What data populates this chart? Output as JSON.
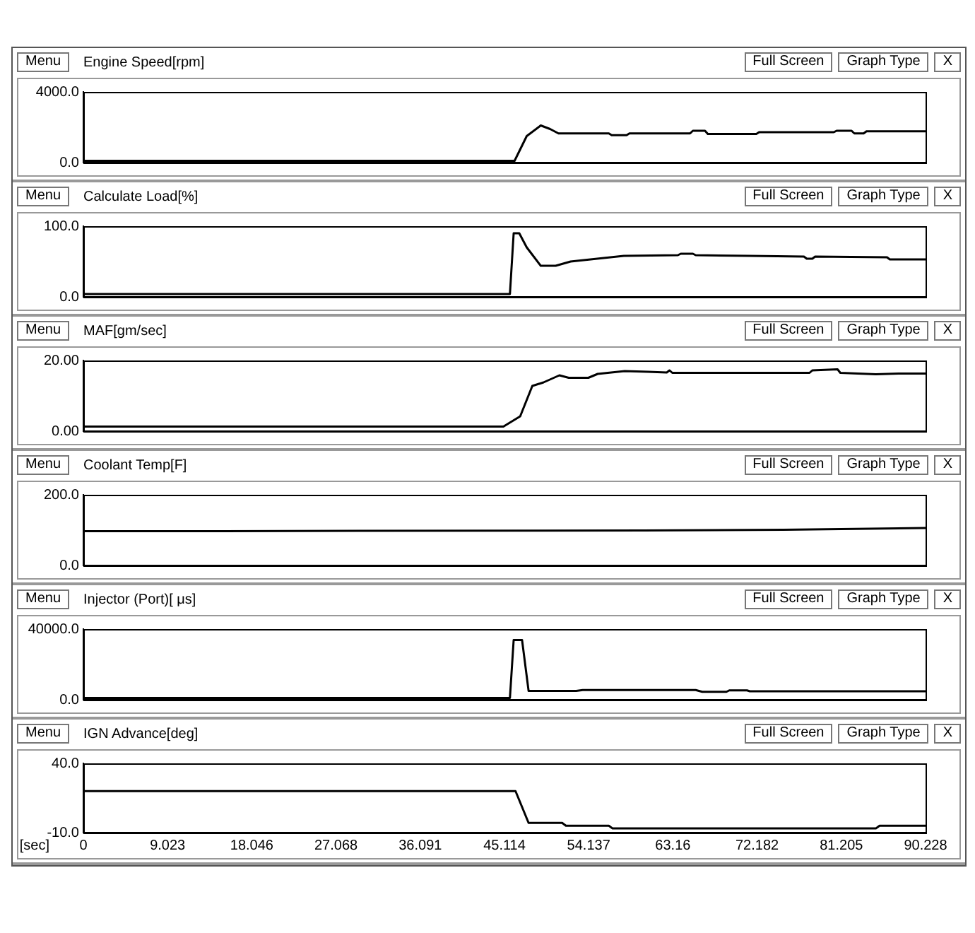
{
  "chart_data": [
    {
      "type": "line",
      "title": "Engine Speed[rpm]",
      "annotations": [
        "Menu",
        "Full Screen",
        "Graph Type",
        "X"
      ],
      "xlim": [
        0,
        90.228
      ],
      "xticks": [
        0,
        9.023,
        18.046,
        27.068,
        36.091,
        45.114,
        54.137,
        63.16,
        72.182,
        81.205,
        90.228
      ],
      "ylim": [
        0,
        4000
      ],
      "yticks": [
        {
          "value": 0,
          "label": "0.0"
        },
        {
          "value": 4000,
          "label": "4000.0"
        }
      ],
      "tick_labels": "y",
      "grid": false,
      "legend": false,
      "series": [
        {
          "color": "#000000",
          "x": [
            0,
            46.2,
            47.5,
            49.0,
            50.0,
            50.9,
            56.3,
            56.6,
            58.2,
            58.5,
            65.0,
            65.3,
            66.6,
            66.9,
            72.1,
            72.4,
            80.4,
            80.7,
            82.3,
            82.6,
            83.6,
            83.9,
            90.228
          ],
          "values": [
            100,
            100,
            1500,
            2100,
            1900,
            1650,
            1650,
            1550,
            1550,
            1650,
            1650,
            1800,
            1800,
            1620,
            1620,
            1720,
            1720,
            1800,
            1800,
            1650,
            1650,
            1770,
            1770
          ]
        }
      ]
    },
    {
      "type": "line",
      "title": "Calculate Load[%]",
      "annotations": [
        "Menu",
        "Full Screen",
        "Graph Type",
        "X"
      ],
      "xlim": [
        0,
        90.228
      ],
      "xticks": [
        0,
        9.023,
        18.046,
        27.068,
        36.091,
        45.114,
        54.137,
        63.16,
        72.182,
        81.205,
        90.228
      ],
      "ylim": [
        0,
        100
      ],
      "yticks": [
        {
          "value": 0,
          "label": "0.0"
        },
        {
          "value": 100,
          "label": "100.0"
        }
      ],
      "tick_labels": "y",
      "grid": false,
      "legend": false,
      "series": [
        {
          "color": "#000000",
          "x": [
            0,
            45.7,
            46.1,
            46.7,
            47.5,
            49.0,
            50.6,
            52.2,
            57.9,
            63.7,
            64.0,
            65.3,
            65.6,
            71.4,
            77.2,
            77.5,
            78.1,
            78.4,
            86.1,
            86.4,
            90.228
          ],
          "values": [
            4,
            4,
            90,
            90,
            70,
            44,
            44,
            50,
            58,
            59,
            61,
            61,
            59,
            58,
            57,
            54,
            54,
            57,
            56,
            53,
            53
          ]
        }
      ]
    },
    {
      "type": "line",
      "title": "MAF[gm/sec]",
      "annotations": [
        "Menu",
        "Full Screen",
        "Graph Type",
        "X"
      ],
      "xlim": [
        0,
        90.228
      ],
      "xticks": [
        0,
        9.023,
        18.046,
        27.068,
        36.091,
        45.114,
        54.137,
        63.16,
        72.182,
        81.205,
        90.228
      ],
      "ylim": [
        0,
        20
      ],
      "yticks": [
        {
          "value": 0,
          "label": "0.00"
        },
        {
          "value": 20,
          "label": "20.00"
        }
      ],
      "tick_labels": "y",
      "grid": false,
      "legend": false,
      "series": [
        {
          "color": "#000000",
          "x": [
            0,
            45.0,
            46.8,
            48.1,
            49.3,
            51.0,
            52.0,
            54.1,
            55.1,
            58.0,
            60.5,
            62.5,
            62.8,
            63.1,
            77.8,
            78.1,
            80.8,
            81.1,
            84.9,
            87.4,
            90.228
          ],
          "values": [
            1.3,
            1.3,
            4.2,
            12.8,
            13.8,
            15.8,
            15.1,
            15.1,
            16.2,
            17.0,
            16.8,
            16.6,
            17.2,
            16.5,
            16.5,
            17.2,
            17.5,
            16.5,
            16.1,
            16.3,
            16.3
          ]
        }
      ]
    },
    {
      "type": "line",
      "title": "Coolant Temp[F]",
      "annotations": [
        "Menu",
        "Full Screen",
        "Graph Type",
        "X"
      ],
      "xlim": [
        0,
        90.228
      ],
      "xticks": [
        0,
        9.023,
        18.046,
        27.068,
        36.091,
        45.114,
        54.137,
        63.16,
        72.182,
        81.205,
        90.228
      ],
      "ylim": [
        0,
        200
      ],
      "yticks": [
        {
          "value": 0,
          "label": "0.0"
        },
        {
          "value": 200,
          "label": "200.0"
        }
      ],
      "tick_labels": "y",
      "grid": false,
      "legend": false,
      "series": [
        {
          "color": "#000000",
          "x": [
            0,
            15,
            30,
            60,
            75,
            90.228
          ],
          "values": [
            97,
            97,
            98,
            99,
            101,
            106
          ]
        }
      ]
    },
    {
      "type": "line",
      "title": "Injector (Port)[ μs]",
      "annotations": [
        "Menu",
        "Full Screen",
        "Graph Type",
        "X"
      ],
      "xlim": [
        0,
        90.228
      ],
      "xticks": [
        0,
        9.023,
        18.046,
        27.068,
        36.091,
        45.114,
        54.137,
        63.16,
        72.182,
        81.205,
        90.228
      ],
      "ylim": [
        0,
        40000
      ],
      "yticks": [
        {
          "value": 0,
          "label": "0.0"
        },
        {
          "value": 40000,
          "label": "40000.0"
        }
      ],
      "tick_labels": "y",
      "grid": false,
      "legend": false,
      "series": [
        {
          "color": "#000000",
          "x": [
            0,
            45.7,
            46.1,
            47.0,
            47.7,
            52.8,
            53.5,
            65.6,
            66.3,
            68.9,
            69.2,
            71.1,
            71.4,
            90.228
          ],
          "values": [
            1000,
            1000,
            33800,
            33800,
            5000,
            5000,
            5500,
            5500,
            4500,
            4500,
            5300,
            5300,
            4800,
            4800
          ]
        }
      ]
    },
    {
      "type": "line",
      "title": "IGN Advance[deg]",
      "annotations": [
        "Menu",
        "Full Screen",
        "Graph Type",
        "X"
      ],
      "xlabel": "[sec]",
      "xlim": [
        0,
        90.228
      ],
      "xticks": [
        0,
        9.023,
        18.046,
        27.068,
        36.091,
        45.114,
        54.137,
        63.16,
        72.182,
        81.205,
        90.228
      ],
      "ylim": [
        -10,
        40
      ],
      "yticks": [
        {
          "value": -10,
          "label": "-10.0"
        },
        {
          "value": 40,
          "label": "40.0"
        }
      ],
      "grid": false,
      "legend": false,
      "series": [
        {
          "color": "#000000",
          "x": [
            0,
            46.3,
            47.7,
            51.3,
            51.7,
            56.3,
            56.7,
            84.9,
            85.3,
            90.228
          ],
          "values": [
            20,
            20,
            -3,
            -3,
            -5,
            -5,
            -7,
            -7,
            -5,
            -5
          ]
        }
      ]
    }
  ]
}
